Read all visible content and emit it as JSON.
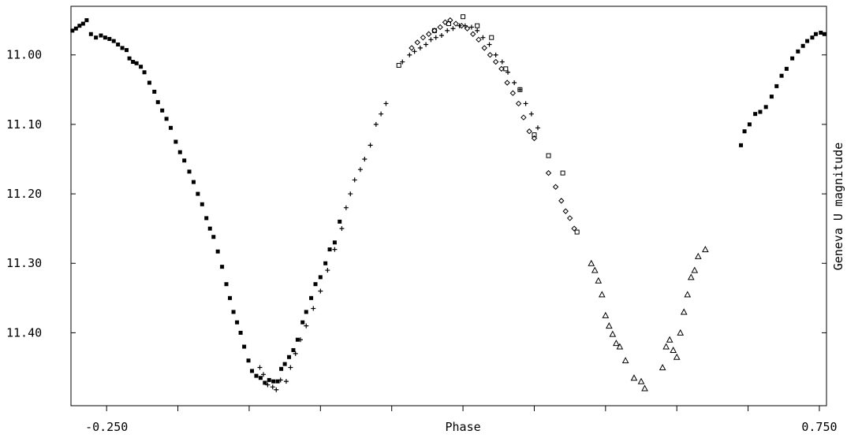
{
  "chart_data": {
    "type": "scatter",
    "title": "",
    "xlabel": "Phase",
    "ylabel": "Geneva U magnitude",
    "xlim": [
      -0.3,
      0.76
    ],
    "ylim": [
      11.505,
      10.93
    ],
    "y_inverted": true,
    "x_ticks": [
      -0.25,
      -0.15,
      -0.05,
      0.05,
      0.15,
      0.25,
      0.35,
      0.45,
      0.55,
      0.65,
      0.75
    ],
    "x_tick_labels": [
      {
        "x": -0.25,
        "label": "-0.250"
      },
      {
        "x": 0.25,
        "label": "Phase"
      },
      {
        "x": 0.75,
        "label": "0.750"
      }
    ],
    "y_ticks": [
      11.0,
      11.1,
      11.2,
      11.3,
      11.4
    ],
    "y_tick_labels": [
      "11.00",
      "11.10",
      "11.20",
      "11.30",
      "11.40"
    ],
    "grid": false,
    "series": [
      {
        "marker": "square-filled",
        "points": [
          [
            -0.298,
            10.965
          ],
          [
            -0.293,
            10.962
          ],
          [
            -0.288,
            10.958
          ],
          [
            -0.283,
            10.955
          ],
          [
            -0.278,
            10.95
          ],
          [
            -0.272,
            10.97
          ],
          [
            -0.265,
            10.975
          ],
          [
            -0.258,
            10.972
          ],
          [
            -0.252,
            10.975
          ],
          [
            -0.246,
            10.977
          ],
          [
            -0.24,
            10.98
          ],
          [
            -0.234,
            10.985
          ],
          [
            -0.228,
            10.99
          ],
          [
            -0.222,
            10.993
          ],
          [
            -0.218,
            11.005
          ],
          [
            -0.213,
            11.01
          ],
          [
            -0.208,
            11.012
          ],
          [
            -0.202,
            11.017
          ],
          [
            -0.197,
            11.025
          ],
          [
            -0.19,
            11.04
          ],
          [
            -0.183,
            11.053
          ],
          [
            -0.178,
            11.068
          ],
          [
            -0.172,
            11.08
          ],
          [
            -0.166,
            11.092
          ],
          [
            -0.16,
            11.105
          ],
          [
            -0.153,
            11.125
          ],
          [
            -0.147,
            11.14
          ],
          [
            -0.141,
            11.152
          ],
          [
            -0.134,
            11.168
          ],
          [
            -0.128,
            11.183
          ],
          [
            -0.122,
            11.2
          ],
          [
            -0.116,
            11.215
          ],
          [
            -0.11,
            11.235
          ],
          [
            -0.105,
            11.25
          ],
          [
            -0.1,
            11.262
          ],
          [
            -0.094,
            11.283
          ],
          [
            -0.088,
            11.305
          ],
          [
            -0.082,
            11.33
          ],
          [
            -0.077,
            11.35
          ],
          [
            -0.072,
            11.37
          ],
          [
            -0.067,
            11.385
          ],
          [
            -0.062,
            11.4
          ],
          [
            -0.057,
            11.42
          ],
          [
            -0.051,
            11.44
          ],
          [
            -0.046,
            11.455
          ],
          [
            -0.04,
            11.462
          ],
          [
            -0.034,
            11.465
          ],
          [
            -0.028,
            11.472
          ],
          [
            -0.022,
            11.468
          ],
          [
            -0.016,
            11.47
          ],
          [
            -0.01,
            11.47
          ],
          [
            -0.005,
            11.452
          ],
          [
            0.0,
            11.445
          ],
          [
            0.006,
            11.435
          ],
          [
            0.012,
            11.425
          ],
          [
            0.018,
            11.41
          ],
          [
            0.025,
            11.385
          ],
          [
            0.03,
            11.37
          ],
          [
            0.037,
            11.35
          ],
          [
            0.043,
            11.33
          ],
          [
            0.05,
            11.32
          ],
          [
            0.057,
            11.3
          ],
          [
            0.063,
            11.28
          ],
          [
            0.07,
            11.27
          ],
          [
            0.077,
            11.24
          ],
          [
            0.64,
            11.13
          ],
          [
            0.645,
            11.11
          ],
          [
            0.652,
            11.1
          ],
          [
            0.66,
            11.085
          ],
          [
            0.667,
            11.082
          ],
          [
            0.675,
            11.075
          ],
          [
            0.683,
            11.06
          ],
          [
            0.69,
            11.045
          ],
          [
            0.697,
            11.03
          ],
          [
            0.704,
            11.02
          ],
          [
            0.712,
            11.005
          ],
          [
            0.72,
            10.995
          ],
          [
            0.727,
            10.987
          ],
          [
            0.733,
            10.98
          ],
          [
            0.74,
            10.975
          ],
          [
            0.745,
            10.97
          ],
          [
            0.752,
            10.968
          ],
          [
            0.757,
            10.97
          ]
        ]
      },
      {
        "marker": "plus",
        "points": [
          [
            -0.035,
            11.45
          ],
          [
            -0.03,
            11.46
          ],
          [
            -0.024,
            11.475
          ],
          [
            -0.017,
            11.478
          ],
          [
            -0.012,
            11.482
          ],
          [
            -0.006,
            11.468
          ],
          [
            0.002,
            11.47
          ],
          [
            0.008,
            11.45
          ],
          [
            0.015,
            11.43
          ],
          [
            0.022,
            11.41
          ],
          [
            0.03,
            11.39
          ],
          [
            0.04,
            11.365
          ],
          [
            0.05,
            11.34
          ],
          [
            0.06,
            11.31
          ],
          [
            0.07,
            11.28
          ],
          [
            0.08,
            11.25
          ],
          [
            0.086,
            11.22
          ],
          [
            0.092,
            11.2
          ],
          [
            0.098,
            11.18
          ],
          [
            0.106,
            11.165
          ],
          [
            0.112,
            11.15
          ],
          [
            0.12,
            11.13
          ],
          [
            0.128,
            11.1
          ],
          [
            0.135,
            11.085
          ],
          [
            0.142,
            11.07
          ],
          [
            0.165,
            11.01
          ],
          [
            0.175,
            11.0
          ],
          [
            0.182,
            10.995
          ],
          [
            0.19,
            10.99
          ],
          [
            0.198,
            10.985
          ],
          [
            0.205,
            10.978
          ],
          [
            0.212,
            10.975
          ],
          [
            0.22,
            10.972
          ],
          [
            0.228,
            10.965
          ],
          [
            0.236,
            10.962
          ],
          [
            0.245,
            10.958
          ],
          [
            0.253,
            10.958
          ],
          [
            0.262,
            10.96
          ],
          [
            0.27,
            10.965
          ],
          [
            0.278,
            10.975
          ],
          [
            0.287,
            10.985
          ],
          [
            0.296,
            11.0
          ],
          [
            0.305,
            11.01
          ],
          [
            0.313,
            11.025
          ],
          [
            0.322,
            11.04
          ],
          [
            0.33,
            11.05
          ],
          [
            0.338,
            11.07
          ],
          [
            0.346,
            11.085
          ],
          [
            0.355,
            11.105
          ]
        ]
      },
      {
        "marker": "diamond",
        "points": [
          [
            0.178,
            10.99
          ],
          [
            0.186,
            10.982
          ],
          [
            0.194,
            10.975
          ],
          [
            0.202,
            10.97
          ],
          [
            0.21,
            10.965
          ],
          [
            0.218,
            10.96
          ],
          [
            0.225,
            10.953
          ],
          [
            0.232,
            10.95
          ],
          [
            0.24,
            10.955
          ],
          [
            0.248,
            10.958
          ],
          [
            0.256,
            10.962
          ],
          [
            0.264,
            10.97
          ],
          [
            0.272,
            10.978
          ],
          [
            0.28,
            10.99
          ],
          [
            0.288,
            11.0
          ],
          [
            0.296,
            11.01
          ],
          [
            0.304,
            11.02
          ],
          [
            0.312,
            11.04
          ],
          [
            0.32,
            11.055
          ],
          [
            0.328,
            11.07
          ],
          [
            0.335,
            11.09
          ],
          [
            0.343,
            11.11
          ],
          [
            0.35,
            11.12
          ],
          [
            0.37,
            11.17
          ],
          [
            0.38,
            11.19
          ],
          [
            0.388,
            11.21
          ],
          [
            0.394,
            11.225
          ],
          [
            0.4,
            11.235
          ],
          [
            0.406,
            11.25
          ]
        ]
      },
      {
        "marker": "square-open",
        "points": [
          [
            0.16,
            11.015
          ],
          [
            0.21,
            10.965
          ],
          [
            0.23,
            10.955
          ],
          [
            0.25,
            10.945
          ],
          [
            0.27,
            10.958
          ],
          [
            0.29,
            10.975
          ],
          [
            0.31,
            11.02
          ],
          [
            0.33,
            11.05
          ],
          [
            0.35,
            11.115
          ],
          [
            0.37,
            11.145
          ],
          [
            0.39,
            11.17
          ],
          [
            0.41,
            11.255
          ]
        ]
      },
      {
        "marker": "triangle-open",
        "points": [
          [
            0.43,
            11.3
          ],
          [
            0.435,
            11.31
          ],
          [
            0.44,
            11.325
          ],
          [
            0.445,
            11.345
          ],
          [
            0.45,
            11.375
          ],
          [
            0.455,
            11.39
          ],
          [
            0.46,
            11.402
          ],
          [
            0.465,
            11.415
          ],
          [
            0.47,
            11.42
          ],
          [
            0.478,
            11.44
          ],
          [
            0.49,
            11.465
          ],
          [
            0.5,
            11.47
          ],
          [
            0.505,
            11.48
          ],
          [
            0.53,
            11.45
          ],
          [
            0.535,
            11.42
          ],
          [
            0.54,
            11.41
          ],
          [
            0.545,
            11.425
          ],
          [
            0.55,
            11.435
          ],
          [
            0.555,
            11.4
          ],
          [
            0.56,
            11.37
          ],
          [
            0.565,
            11.345
          ],
          [
            0.57,
            11.32
          ],
          [
            0.575,
            11.31
          ],
          [
            0.58,
            11.29
          ],
          [
            0.59,
            11.28
          ]
        ]
      }
    ]
  }
}
